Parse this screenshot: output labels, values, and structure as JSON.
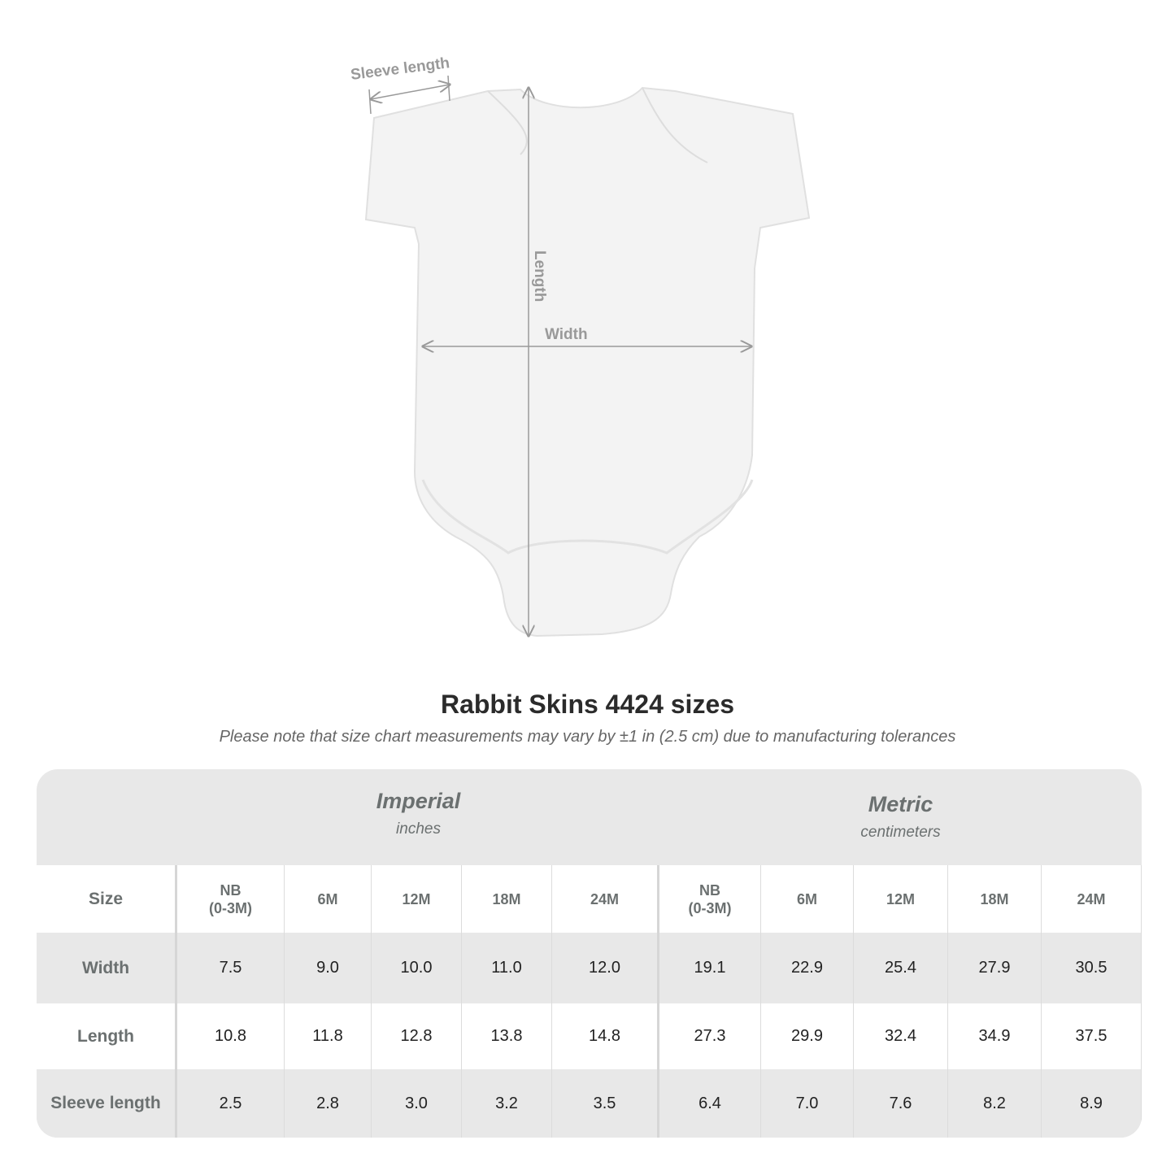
{
  "diagram": {
    "labels": {
      "sleeve": "Sleeve length",
      "length": "Length",
      "width": "Width"
    }
  },
  "title": "Rabbit Skins 4424 sizes",
  "note": "Please note that size chart measurements may vary by ±1 in (2.5 cm) due to manufacturing tolerances",
  "table": {
    "imperial": {
      "label": "Imperial",
      "unit": "inches"
    },
    "metric": {
      "label": "Metric",
      "unit": "centimeters"
    },
    "size_label": "Size",
    "sizes": [
      "NB\n(0-3M)",
      "6M",
      "12M",
      "18M",
      "24M",
      "NB\n(0-3M)",
      "6M",
      "12M",
      "18M",
      "24M"
    ],
    "rows": [
      {
        "label": "Width",
        "values": [
          "7.5",
          "9.0",
          "10.0",
          "11.0",
          "12.0",
          "19.1",
          "22.9",
          "25.4",
          "27.9",
          "30.5"
        ]
      },
      {
        "label": "Length",
        "values": [
          "10.8",
          "11.8",
          "12.8",
          "13.8",
          "14.8",
          "27.3",
          "29.9",
          "32.4",
          "34.9",
          "37.5"
        ]
      },
      {
        "label": "Sleeve length",
        "values": [
          "2.5",
          "2.8",
          "3.0",
          "3.2",
          "3.5",
          "6.4",
          "7.0",
          "7.6",
          "8.2",
          "8.9"
        ]
      }
    ]
  },
  "colors": {
    "band": "#e8e8e8",
    "label_text": "#6b7070",
    "measure_line": "#999999"
  }
}
